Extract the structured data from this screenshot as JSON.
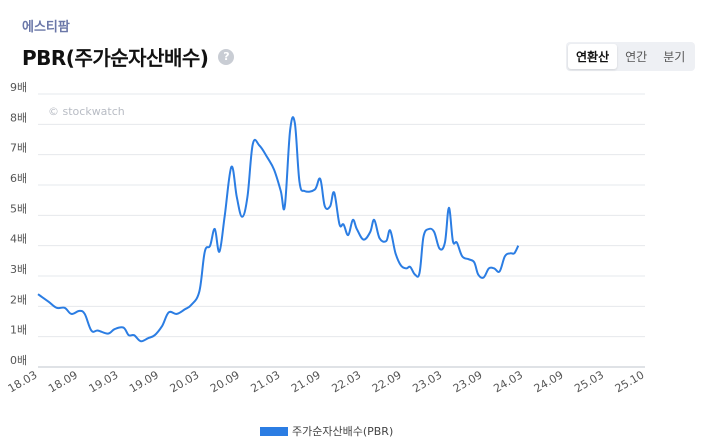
{
  "header": {
    "company": "에스티팜",
    "title": "PBR(주가순자산배수)",
    "help_icon": "?",
    "tabs": [
      {
        "label": "연환산",
        "active": true
      },
      {
        "label": "연간",
        "active": false
      },
      {
        "label": "분기",
        "active": false
      }
    ]
  },
  "chart_data": {
    "type": "line",
    "watermark": "© stockwatch",
    "y_unit_suffix": "배",
    "ylim": [
      0,
      9
    ],
    "y_ticks": [
      0,
      1,
      2,
      3,
      4,
      5,
      6,
      7,
      8,
      9
    ],
    "x_tick_labels": [
      "18.03",
      "18.09",
      "19.03",
      "19.09",
      "20.03",
      "20.09",
      "21.03",
      "21.09",
      "22.03",
      "22.09",
      "23.03",
      "23.09",
      "24.03",
      "24.09",
      "25.03",
      "25.10"
    ],
    "x_domain": [
      0,
      91
    ],
    "grid": true,
    "legend_position": "bottom",
    "color": "#2b7de3",
    "series": [
      {
        "name": "주가순자산배수(PBR)",
        "points": [
          [
            0,
            2.4
          ],
          [
            1.6,
            2.15
          ],
          [
            2.8,
            1.95
          ],
          [
            4,
            1.95
          ],
          [
            5,
            1.75
          ],
          [
            6.2,
            1.85
          ],
          [
            7,
            1.75
          ],
          [
            8,
            1.2
          ],
          [
            9,
            1.2
          ],
          [
            10.5,
            1.1
          ],
          [
            11.5,
            1.25
          ],
          [
            12.8,
            1.3
          ],
          [
            13.6,
            1.05
          ],
          [
            14.4,
            1.05
          ],
          [
            15.4,
            0.85
          ],
          [
            16.5,
            0.95
          ],
          [
            17.5,
            1.05
          ],
          [
            18.6,
            1.35
          ],
          [
            19.6,
            1.8
          ],
          [
            20.8,
            1.75
          ],
          [
            22,
            1.9
          ],
          [
            23,
            2.05
          ],
          [
            24.2,
            2.5
          ],
          [
            25,
            3.8
          ],
          [
            25.8,
            4.0
          ],
          [
            26.5,
            4.55
          ],
          [
            27.2,
            3.8
          ],
          [
            28,
            5.0
          ],
          [
            29,
            6.6
          ],
          [
            29.8,
            5.6
          ],
          [
            30.6,
            4.95
          ],
          [
            31.4,
            5.6
          ],
          [
            32.2,
            7.35
          ],
          [
            33.2,
            7.3
          ],
          [
            34.4,
            6.9
          ],
          [
            35.4,
            6.5
          ],
          [
            36.4,
            5.8
          ],
          [
            37,
            5.3
          ],
          [
            37.8,
            7.8
          ],
          [
            38.5,
            8.05
          ],
          [
            39.2,
            6.1
          ],
          [
            40,
            5.8
          ],
          [
            41.5,
            5.85
          ],
          [
            42.3,
            6.2
          ],
          [
            43,
            5.3
          ],
          [
            43.8,
            5.3
          ],
          [
            44.4,
            5.75
          ],
          [
            45.2,
            4.7
          ],
          [
            45.8,
            4.7
          ],
          [
            46.5,
            4.35
          ],
          [
            47.2,
            4.85
          ],
          [
            47.8,
            4.55
          ],
          [
            48.8,
            4.2
          ],
          [
            49.8,
            4.45
          ],
          [
            50.4,
            4.85
          ],
          [
            51.2,
            4.25
          ],
          [
            52.2,
            4.15
          ],
          [
            52.8,
            4.5
          ],
          [
            53.6,
            3.75
          ],
          [
            54.4,
            3.35
          ],
          [
            55.2,
            3.25
          ],
          [
            55.8,
            3.3
          ],
          [
            56.5,
            3.05
          ],
          [
            57.2,
            3.1
          ],
          [
            57.8,
            4.3
          ],
          [
            58.6,
            4.55
          ],
          [
            59.4,
            4.45
          ],
          [
            60.2,
            3.9
          ],
          [
            61,
            4.1
          ],
          [
            61.6,
            5.25
          ],
          [
            62.2,
            4.15
          ],
          [
            62.8,
            4.1
          ],
          [
            63.6,
            3.65
          ],
          [
            64.6,
            3.55
          ],
          [
            65.4,
            3.45
          ],
          [
            66,
            3.05
          ],
          [
            66.8,
            2.95
          ],
          [
            67.6,
            3.25
          ],
          [
            68.4,
            3.25
          ],
          [
            69.2,
            3.15
          ],
          [
            70,
            3.65
          ],
          [
            70.8,
            3.75
          ],
          [
            71.4,
            3.75
          ],
          [
            72,
            4.0
          ]
        ]
      }
    ]
  }
}
